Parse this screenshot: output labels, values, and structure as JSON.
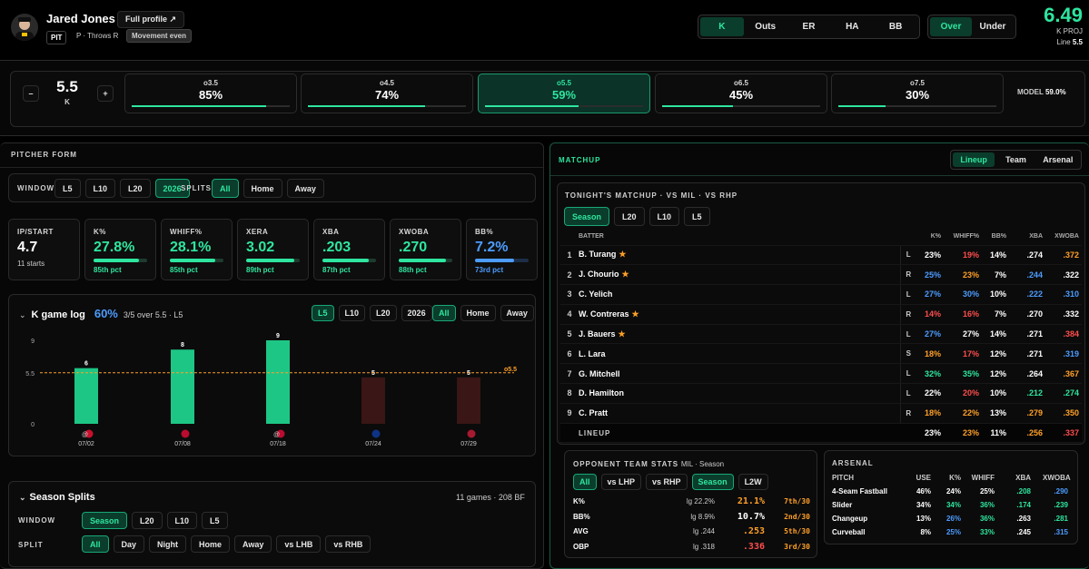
{
  "player": {
    "name": "Jared Jones",
    "full_profile": "Full profile ↗",
    "team": "PIT",
    "role": "P · Throws R",
    "movement": "Movement even"
  },
  "market_tabs": [
    "K",
    "Outs",
    "ER",
    "HA",
    "BB"
  ],
  "ou_tabs": [
    "Over",
    "Under"
  ],
  "projection": {
    "value": "6.49",
    "label": "K PROJ",
    "line_label": "Line",
    "line": "5.5"
  },
  "line_control": {
    "value": "5.5",
    "unit": "K",
    "minus": "–",
    "plus": "+"
  },
  "line_cards": [
    {
      "label": "o3.5",
      "pct": "85%",
      "fill": 0.85
    },
    {
      "label": "o4.5",
      "pct": "74%",
      "fill": 0.74
    },
    {
      "label": "o5.5",
      "pct": "59%",
      "fill": 0.59
    },
    {
      "label": "o6.5",
      "pct": "45%",
      "fill": 0.45
    },
    {
      "label": "o7.5",
      "pct": "30%",
      "fill": 0.3
    }
  ],
  "model": {
    "label": "MODEL",
    "value": "59.0%"
  },
  "pitcher_form": {
    "title": "PITCHER FORM",
    "window_label": "WINDOW",
    "windows": [
      "L5",
      "L10",
      "L20",
      "2026"
    ],
    "splits_label": "SPLITS",
    "splits": [
      "All",
      "Home",
      "Away"
    ]
  },
  "stats": [
    {
      "title": "IP/START",
      "value": "4.7",
      "sub": "11 starts",
      "color": "#ffffff"
    },
    {
      "title": "K%",
      "value": "27.8%",
      "pct": "85th pct",
      "fill": 0.85,
      "color": "#2ee69f"
    },
    {
      "title": "WHIFF%",
      "value": "28.1%",
      "pct": "85th pct",
      "fill": 0.85,
      "color": "#2ee69f"
    },
    {
      "title": "XERA",
      "value": "3.02",
      "pct": "89th pct",
      "fill": 0.89,
      "color": "#2ee69f"
    },
    {
      "title": "XBA",
      ".203": "",
      "value": ".203",
      "pct": "87th pct",
      "fill": 0.87,
      "color": "#2ee69f"
    },
    {
      "title": "XWOBA",
      "value": ".270",
      "pct": "88th pct",
      "fill": 0.88,
      "color": "#2ee69f"
    },
    {
      "title": "BB%",
      "value": "7.2%",
      "pct": "73rd pct",
      "fill": 0.73,
      "color": "#4d9cff"
    }
  ],
  "game_log": {
    "title": "K game log",
    "hit_rate": "60%",
    "summary": "3/5 over 5.5 · L5",
    "windows": [
      "L5",
      "L10",
      "L20",
      "2026"
    ],
    "splits": [
      "All",
      "Home",
      "Away"
    ]
  },
  "chart_data": {
    "type": "bar",
    "categories": [
      "07/02",
      "07/08",
      "07/18",
      "07/24",
      "07/29"
    ],
    "opponents": [
      "@",
      "",
      "@",
      "",
      ""
    ],
    "values": [
      6,
      8,
      9,
      5,
      5
    ],
    "line": 5.5,
    "line_label": "o5.5",
    "yticks": [
      "9",
      "5.5",
      "0"
    ],
    "ylim": [
      0,
      9
    ]
  },
  "season_splits": {
    "title": "Season Splits",
    "summary": "11 games · 208 BF",
    "window_label": "WINDOW",
    "windows": [
      "Season",
      "L20",
      "L10",
      "L5"
    ],
    "split_label": "SPLIT",
    "splits": [
      "All",
      "Day",
      "Night",
      "Home",
      "Away",
      "vs LHB",
      "vs RHB"
    ]
  },
  "matchup": {
    "title": "MATCHUP",
    "tabs": [
      "Lineup",
      "Team",
      "Arsenal"
    ],
    "tonight": "TONIGHT'S MATCHUP · VS MIL · VS RHP",
    "windows": [
      "Season",
      "L20",
      "L10",
      "L5"
    ],
    "headers": [
      "BATTER",
      "K%",
      "WHIFF%",
      "BB%",
      "XBA",
      "XWOBA"
    ],
    "lineup": [
      {
        "n": "1",
        "name": "B. Turang",
        "star": true,
        "hand": "L",
        "k": "23%",
        "whiff": "19%",
        "bb": "14%",
        "xba": ".274",
        "xwoba": ".372",
        "c": [
          "w",
          "r",
          "w",
          "w",
          "o"
        ]
      },
      {
        "n": "2",
        "name": "J. Chourio",
        "star": true,
        "hand": "R",
        "k": "25%",
        "whiff": "23%",
        "bb": "7%",
        "xba": ".244",
        "xwoba": ".322",
        "c": [
          "b",
          "o",
          "w",
          "b",
          "w"
        ]
      },
      {
        "n": "3",
        "name": "C. Yelich",
        "star": false,
        "hand": "L",
        "k": "27%",
        "whiff": "30%",
        "bb": "10%",
        "xba": ".222",
        "xwoba": ".310",
        "c": [
          "b",
          "b",
          "w",
          "b",
          "b"
        ]
      },
      {
        "n": "4",
        "name": "W. Contreras",
        "star": true,
        "hand": "R",
        "k": "14%",
        "whiff": "16%",
        "bb": "7%",
        "xba": ".270",
        "xwoba": ".332",
        "c": [
          "r",
          "r",
          "w",
          "w",
          "w"
        ]
      },
      {
        "n": "5",
        "name": "J. Bauers",
        "star": true,
        "hand": "L",
        "k": "27%",
        "whiff": "27%",
        "bb": "14%",
        "xba": ".271",
        "xwoba": ".384",
        "c": [
          "b",
          "w",
          "w",
          "w",
          "r"
        ]
      },
      {
        "n": "6",
        "name": "L. Lara",
        "star": false,
        "hand": "S",
        "k": "18%",
        "whiff": "17%",
        "bb": "12%",
        "xba": ".271",
        "xwoba": ".319",
        "c": [
          "o",
          "r",
          "w",
          "w",
          "b"
        ]
      },
      {
        "n": "7",
        "name": "G. Mitchell",
        "star": false,
        "hand": "L",
        "k": "32%",
        "whiff": "35%",
        "bb": "12%",
        "xba": ".264",
        "xwoba": ".367",
        "c": [
          "g",
          "g",
          "w",
          "w",
          "o"
        ]
      },
      {
        "n": "8",
        "name": "D. Hamilton",
        "star": false,
        "hand": "L",
        "k": "22%",
        "whiff": "20%",
        "bb": "10%",
        "xba": ".212",
        "xwoba": ".274",
        "c": [
          "w",
          "r",
          "w",
          "g",
          "g"
        ]
      },
      {
        "n": "9",
        "name": "C. Pratt",
        "star": false,
        "hand": "R",
        "k": "18%",
        "whiff": "22%",
        "bb": "13%",
        "xba": ".279",
        "xwoba": ".350",
        "c": [
          "o",
          "o",
          "w",
          "o",
          "o"
        ]
      }
    ],
    "total": {
      "label": "LINEUP",
      "k": "23%",
      "whiff": "23%",
      "bb": "11%",
      "xba": ".256",
      "xwoba": ".337"
    }
  },
  "opp_stats": {
    "title": "OPPONENT TEAM STATS",
    "sub": "MIL · Season",
    "tabs": [
      "All",
      "vs LHP",
      "vs RHP",
      "Season",
      "L2W"
    ],
    "rows": [
      {
        "stat": "K%",
        "lg": "lg 22.2%",
        "val": "21.1%",
        "rank": "7th/30",
        "vc": "o"
      },
      {
        "stat": "BB%",
        "lg": "lg 8.9%",
        "val": "10.7%",
        "rank": "2nd/30",
        "vc": "w"
      },
      {
        "stat": "AVG",
        "lg": "lg .244",
        "val": ".253",
        "rank": "5th/30",
        "vc": "o"
      },
      {
        "stat": "OBP",
        "lg": "lg .318",
        "val": ".336",
        "rank": "3rd/30",
        "vc": "r"
      }
    ]
  },
  "arsenal": {
    "title": "ARSENAL",
    "headers": [
      "PITCH",
      "USE",
      "K%",
      "WHIFF",
      "XBA",
      "XWOBA"
    ],
    "rows": [
      {
        "pitch": "4-Seam Fastball",
        "use": "46%",
        "k": "24%",
        "whiff": "25%",
        "xba": ".208",
        "xwoba": ".290"
      },
      {
        "pitch": "Slider",
        "use": "34%",
        "k": "34%",
        "whiff": "36%",
        "xba": ".174",
        "xwoba": ".239"
      },
      {
        "pitch": "Changeup",
        "use": "13%",
        "k": "26%",
        "whiff": "36%",
        "xba": ".263",
        "xwoba": ".281"
      },
      {
        "pitch": "Curveball",
        "use": "8%",
        "k": "25%",
        "whiff": "33%",
        "xba": ".245",
        "xwoba": ".315"
      }
    ]
  },
  "colors": {
    "accent": "#2ee69f",
    "blue": "#4d9cff",
    "red": "#ff4d4d",
    "orange": "#ffa028",
    "under_bar": "#3a1616"
  }
}
